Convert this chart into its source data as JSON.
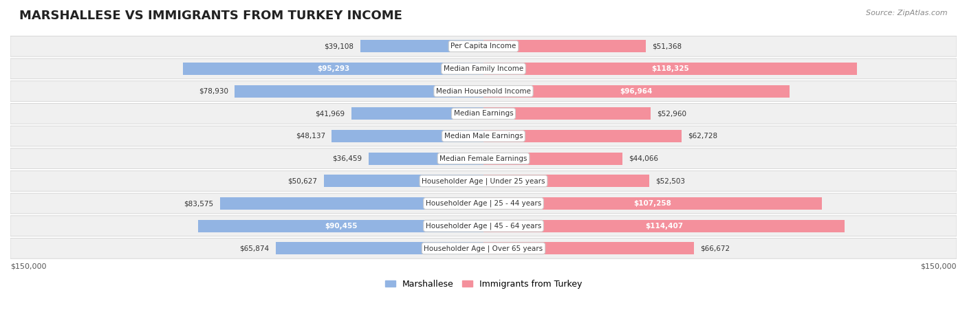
{
  "title": "MARSHALLESE VS IMMIGRANTS FROM TURKEY INCOME",
  "source": "Source: ZipAtlas.com",
  "categories": [
    "Per Capita Income",
    "Median Family Income",
    "Median Household Income",
    "Median Earnings",
    "Median Male Earnings",
    "Median Female Earnings",
    "Householder Age | Under 25 years",
    "Householder Age | 25 - 44 years",
    "Householder Age | 45 - 64 years",
    "Householder Age | Over 65 years"
  ],
  "marshallese_values": [
    39108,
    95293,
    78930,
    41969,
    48137,
    36459,
    50627,
    83575,
    90455,
    65874
  ],
  "turkey_values": [
    51368,
    118325,
    96964,
    52960,
    62728,
    44066,
    52503,
    107258,
    114407,
    66672
  ],
  "marshallese_labels": [
    "$39,108",
    "$95,293",
    "$78,930",
    "$41,969",
    "$48,137",
    "$36,459",
    "$50,627",
    "$83,575",
    "$90,455",
    "$65,874"
  ],
  "turkey_labels": [
    "$51,368",
    "$118,325",
    "$96,964",
    "$52,960",
    "$62,728",
    "$44,066",
    "$52,503",
    "$107,258",
    "$114,407",
    "$66,672"
  ],
  "marshallese_color": "#92b4e3",
  "turkey_color": "#f4909c",
  "marshallese_color_dark": "#5b8fd4",
  "turkey_color_dark": "#f06070",
  "max_value": 150000,
  "legend_marshallese": "Marshallese",
  "legend_turkey": "Immigrants from Turkey",
  "background_row_color": "#f0f0f0",
  "background_color": "#ffffff",
  "xlabel_left": "$150,000",
  "xlabel_right": "$150,000"
}
